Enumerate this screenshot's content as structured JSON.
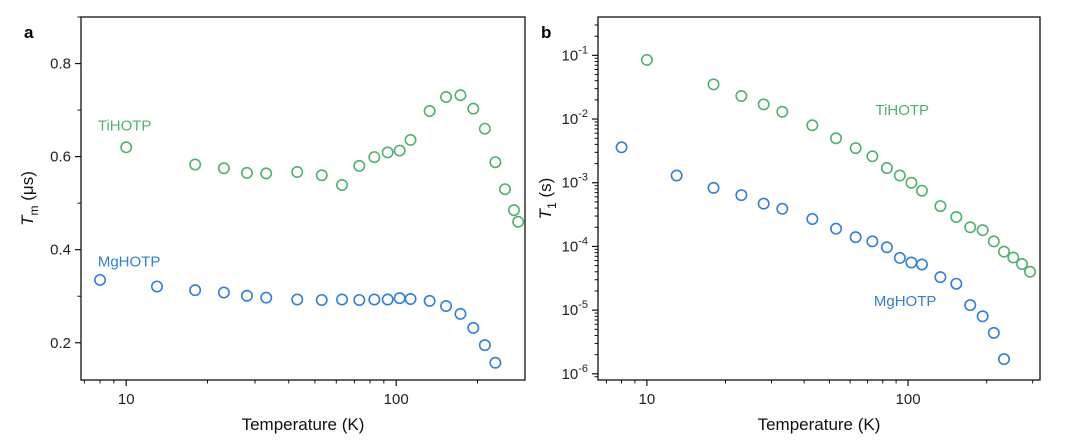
{
  "colors": {
    "TiHOTP": "#4db36b",
    "MgHOTP": "#2f7fdc",
    "axis": "#111111"
  },
  "chart_data": [
    {
      "type": "scatter",
      "panel": "a",
      "xlabel": "Temperature (K)",
      "ylabel_main": "T",
      "ylabel_sub": "m",
      "ylabel_unit": " (μs)",
      "xscale": "log",
      "yscale": "linear",
      "xlim": [
        6.8,
        300
      ],
      "ylim": [
        0.12,
        0.9
      ],
      "xticks": [
        10,
        100
      ],
      "xtick_labels": [
        "10",
        "100"
      ],
      "yticks": [
        0.2,
        0.4,
        0.6,
        0.8
      ],
      "ytick_labels": [
        "0.2",
        "0.4",
        "0.6",
        "0.8"
      ],
      "series": [
        {
          "name": "TiHOTP",
          "label_anchor": [
            7.85,
            0.667
          ],
          "x": [
            10,
            18,
            23,
            28,
            33,
            43,
            53,
            63,
            73,
            83,
            93,
            103,
            113,
            133,
            153,
            173,
            193,
            213,
            233,
            253,
            273,
            283
          ],
          "y": [
            0.62,
            0.583,
            0.575,
            0.565,
            0.564,
            0.567,
            0.56,
            0.539,
            0.58,
            0.599,
            0.609,
            0.613,
            0.636,
            0.698,
            0.728,
            0.732,
            0.703,
            0.66,
            0.588,
            0.53,
            0.485,
            0.46
          ]
        },
        {
          "name": "MgHOTP",
          "label_anchor": [
            7.85,
            0.375
          ],
          "x": [
            8,
            13,
            18,
            23,
            28,
            33,
            43,
            53,
            63,
            73,
            83,
            93,
            103,
            113,
            133,
            153,
            173,
            193,
            213,
            233
          ],
          "y": [
            0.335,
            0.321,
            0.313,
            0.308,
            0.301,
            0.297,
            0.293,
            0.292,
            0.293,
            0.292,
            0.293,
            0.293,
            0.296,
            0.294,
            0.29,
            0.279,
            0.262,
            0.232,
            0.195,
            0.157
          ]
        }
      ]
    },
    {
      "type": "scatter",
      "panel": "b",
      "xlabel": "Temperature (K)",
      "ylabel_main": "T",
      "ylabel_sub": "1",
      "ylabel_unit": " (s)",
      "xscale": "log",
      "yscale": "log",
      "xlim": [
        6.5,
        320
      ],
      "ylim": [
        8e-07,
        0.4
      ],
      "xticks": [
        10,
        100
      ],
      "xtick_labels": [
        "10",
        "100"
      ],
      "yticks": [
        1e-06,
        1e-05,
        0.0001,
        0.001,
        0.01,
        0.1
      ],
      "ytick_labels": [
        {
          "base": "10",
          "exp": "-6"
        },
        {
          "base": "10",
          "exp": "-5"
        },
        {
          "base": "10",
          "exp": "-4"
        },
        {
          "base": "10",
          "exp": "-3"
        },
        {
          "base": "10",
          "exp": "-2"
        },
        {
          "base": "10",
          "exp": "-1"
        }
      ],
      "series": [
        {
          "name": "TiHOTP",
          "label_anchor": [
            75,
            0.0138
          ],
          "x": [
            10,
            18,
            23,
            28,
            33,
            43,
            53,
            63,
            73,
            83,
            93,
            103,
            113,
            133,
            153,
            173,
            193,
            213,
            233,
            253,
            273,
            293
          ],
          "y": [
            0.085,
            0.035,
            0.023,
            0.017,
            0.013,
            0.008,
            0.005,
            0.0035,
            0.0026,
            0.0017,
            0.0013,
            0.001,
            0.00075,
            0.00043,
            0.00029,
            0.0002,
            0.00018,
            0.00012,
            8.3e-05,
            6.7e-05,
            5.3e-05,
            4e-05
          ]
        },
        {
          "name": "MgHOTP",
          "label_anchor": [
            74,
            1.4e-05
          ],
          "x": [
            8,
            13,
            18,
            23,
            28,
            33,
            43,
            53,
            63,
            73,
            83,
            93,
            103,
            113,
            133,
            153,
            173,
            193,
            213,
            233
          ],
          "y": [
            0.0036,
            0.0013,
            0.00083,
            0.00064,
            0.00047,
            0.00039,
            0.00027,
            0.00019,
            0.00014,
            0.00012,
            9.7e-05,
            6.6e-05,
            5.6e-05,
            5.2e-05,
            3.3e-05,
            2.6e-05,
            1.2e-05,
            8e-06,
            4.4e-06,
            1.7e-06
          ]
        }
      ]
    }
  ]
}
